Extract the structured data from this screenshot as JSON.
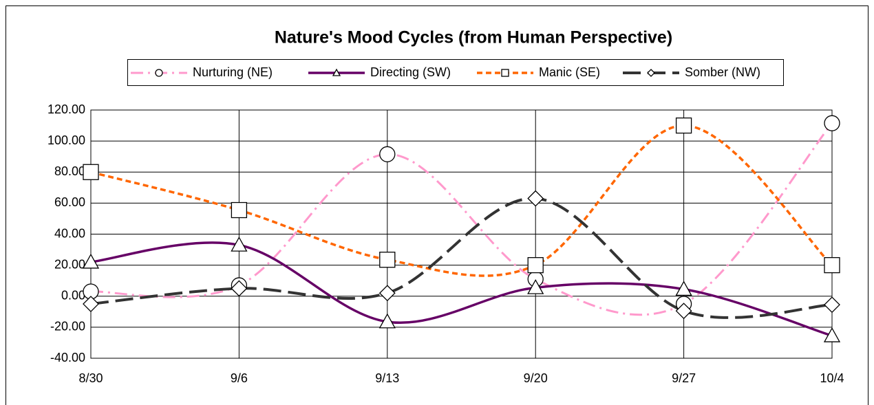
{
  "chart_data": {
    "type": "line",
    "title": "Nature's Mood Cycles (from Human Perspective)",
    "categories": [
      "8/30",
      "9/6",
      "9/13",
      "9/20",
      "9/27",
      "10/4"
    ],
    "series": [
      {
        "name": "Nurturing (NE)",
        "color": "#ff99cc",
        "marker": "circle",
        "values": [
          3,
          7,
          91.5,
          11,
          -5,
          111.5
        ]
      },
      {
        "name": "Directing (SW)",
        "color": "#660066",
        "marker": "triangle",
        "values": [
          22,
          33,
          -16.5,
          5.5,
          4.5,
          -25.5
        ]
      },
      {
        "name": "Manic (SE)",
        "color": "#ff6600",
        "marker": "square",
        "values": [
          80,
          55.5,
          23.5,
          20,
          110,
          20
        ]
      },
      {
        "name": "Somber (NW)",
        "color": "#333333",
        "marker": "diamond",
        "values": [
          -5,
          5,
          2,
          63,
          -9.5,
          -5.5
        ]
      }
    ],
    "ylim": [
      -40,
      120
    ],
    "yticks": [
      {
        "value": -40,
        "label": "-40.00"
      },
      {
        "value": -20,
        "label": "-20.00"
      },
      {
        "value": 0,
        "label": "0.00"
      },
      {
        "value": 20,
        "label": "20.00"
      },
      {
        "value": 40,
        "label": "40.00"
      },
      {
        "value": 60,
        "label": "60.00"
      },
      {
        "value": 80,
        "label": "80.00"
      },
      {
        "value": 100,
        "label": "100.00"
      },
      {
        "value": 120,
        "label": "120.00"
      }
    ],
    "grid": true,
    "smooth": true,
    "legend": "top"
  }
}
